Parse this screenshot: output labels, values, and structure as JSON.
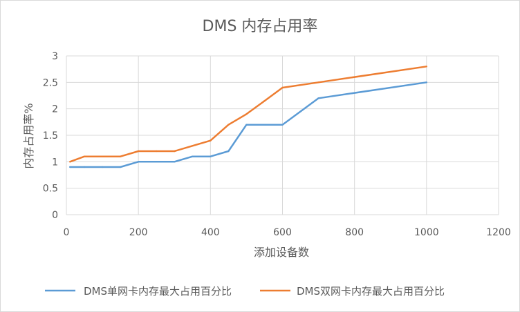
{
  "chart_data": {
    "type": "line",
    "title": "DMS 内存占用率",
    "xlabel": "添加设备数",
    "ylabel": "内存占用率%",
    "xlim": [
      0,
      1200
    ],
    "ylim": [
      0,
      3
    ],
    "xticks": [
      0,
      200,
      400,
      600,
      800,
      1000,
      1200
    ],
    "yticks": [
      0,
      0.5,
      1,
      1.5,
      2,
      2.5,
      3
    ],
    "xtick_labels": [
      "0",
      "200",
      "400",
      "600",
      "800",
      "1000",
      "1200"
    ],
    "ytick_labels": [
      "0",
      "0.5",
      "1",
      "1.5",
      "2",
      "2.5",
      "3"
    ],
    "grid": true,
    "legend_position": "bottom",
    "series": [
      {
        "name": "DMS单网卡内存最大占用百分比",
        "color": "#5b9bd5",
        "x": [
          10,
          50,
          100,
          150,
          200,
          250,
          300,
          350,
          400,
          450,
          500,
          550,
          600,
          700,
          1000
        ],
        "y": [
          0.9,
          0.9,
          0.9,
          0.9,
          1.0,
          1.0,
          1.0,
          1.1,
          1.1,
          1.2,
          1.7,
          1.7,
          1.7,
          2.2,
          2.5
        ]
      },
      {
        "name": "DMS双网卡内存最大占用百分比",
        "color": "#ed7d31",
        "x": [
          10,
          50,
          100,
          150,
          200,
          250,
          300,
          350,
          400,
          450,
          500,
          550,
          600,
          700,
          1000
        ],
        "y": [
          1.0,
          1.1,
          1.1,
          1.1,
          1.2,
          1.2,
          1.2,
          1.3,
          1.4,
          1.7,
          1.9,
          2.15,
          2.4,
          2.5,
          2.8
        ]
      }
    ]
  }
}
